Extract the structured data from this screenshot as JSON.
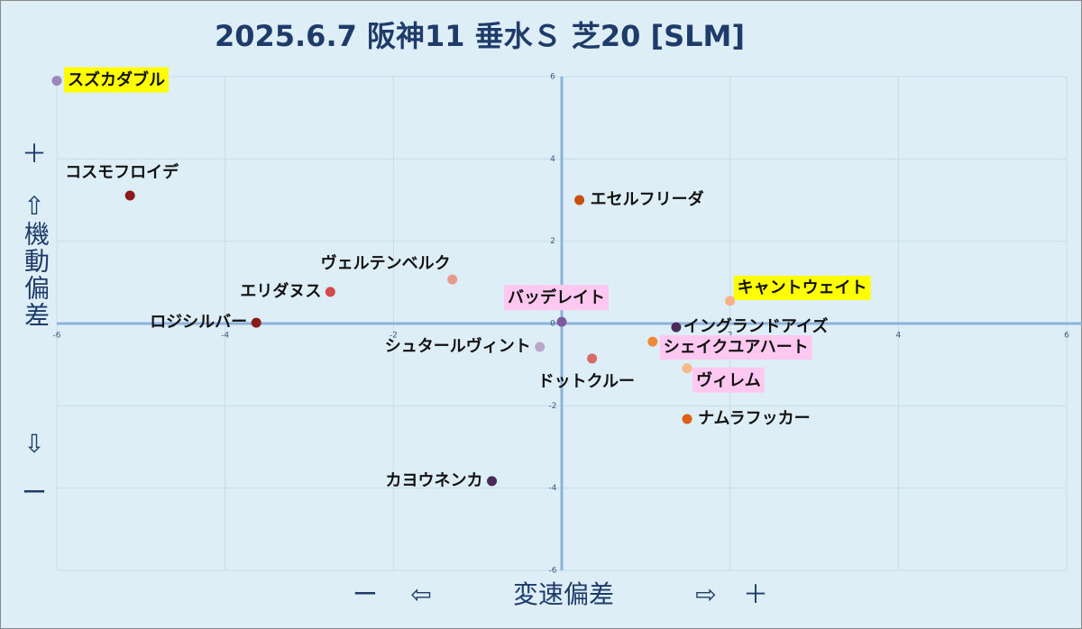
{
  "chart_data": {
    "type": "scatter",
    "title": "2025.6.7 阪神11 垂水Ｓ 芝20 [SLM]",
    "x_axis_labels": [
      "ー",
      "⇦",
      "変速偏差",
      "⇨",
      "＋"
    ],
    "y_axis_labels": [
      "＋",
      "⇧",
      "機動偏差",
      "⇩",
      "ー"
    ],
    "xlim": [
      -6,
      6
    ],
    "ylim": [
      -6,
      6
    ],
    "xticks": [
      -6,
      -4,
      -2,
      0,
      2,
      4,
      6
    ],
    "yticks": [
      -6,
      -4,
      -2,
      0,
      2,
      4,
      6
    ],
    "grid": true,
    "points": [
      {
        "name": "スズカダブル",
        "x": -6.0,
        "y": 5.9,
        "color": "#9b87b8",
        "label_bg": "#ffff00"
      },
      {
        "name": "コスモフロイデ",
        "x": -5.13,
        "y": 3.11,
        "color": "#8b1a1a"
      },
      {
        "name": "エセルフリーダ",
        "x": 0.21,
        "y": 3.0,
        "color": "#c8500a"
      },
      {
        "name": "ヴェルテンベルク",
        "x": -1.3,
        "y": 1.07,
        "color": "#e89a8c"
      },
      {
        "name": "エリダヌス",
        "x": -2.75,
        "y": 0.77,
        "color": "#d24a4a"
      },
      {
        "name": "ロジシルバー",
        "x": -3.63,
        "y": 0.02,
        "color": "#8b1a1a"
      },
      {
        "name": "バッデレイト",
        "x": 0.0,
        "y": 0.04,
        "color": "#7b5aa0",
        "label_bg": "#ffc8f0"
      },
      {
        "name": "キャントウェイト",
        "x": 2.0,
        "y": 0.55,
        "color": "#f5b08a",
        "label_bg": "#ffff00"
      },
      {
        "name": "イングランドアイズ",
        "x": 1.36,
        "y": -0.09,
        "color": "#4a2a5a"
      },
      {
        "name": "シュタールヴィント",
        "x": -0.26,
        "y": -0.57,
        "color": "#b8a8cc"
      },
      {
        "name": "シェイクユアハート",
        "x": 1.08,
        "y": -0.44,
        "color": "#f08a3a",
        "label_bg": "#ffc8f0"
      },
      {
        "name": "ドットクルー",
        "x": 0.36,
        "y": -0.85,
        "color": "#d86a6a"
      },
      {
        "name": "ヴィレム",
        "x": 1.49,
        "y": -1.09,
        "color": "#f8b88a",
        "label_bg": "#ffc8f0"
      },
      {
        "name": "ナムラフッカー",
        "x": 1.49,
        "y": -2.32,
        "color": "#e0601a"
      },
      {
        "name": "カヨウネンカ",
        "x": -0.83,
        "y": -3.83,
        "color": "#4a2a5a"
      }
    ]
  }
}
